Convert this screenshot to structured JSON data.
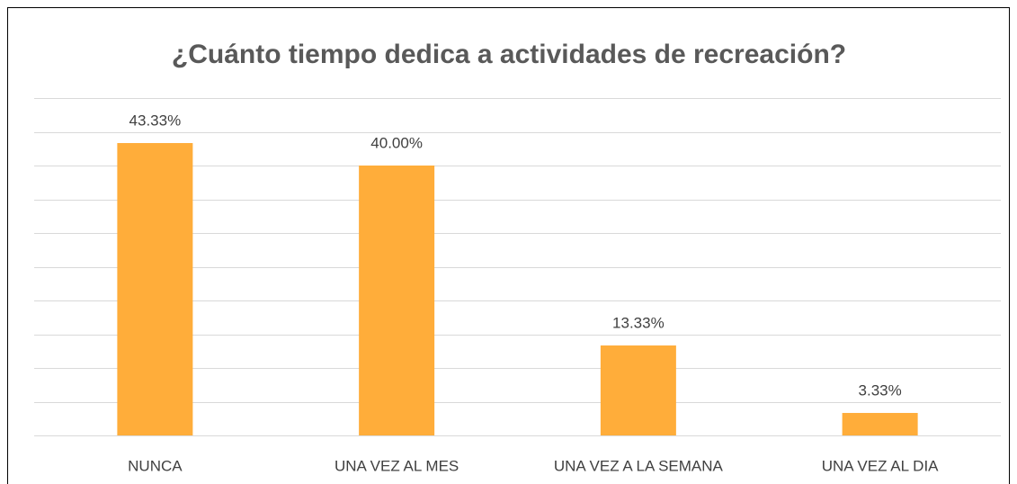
{
  "chart_data": {
    "type": "bar",
    "title": "¿Cuánto tiempo dedica a actividades de recreación?",
    "categories": [
      "NUNCA",
      "UNA VEZ AL MES",
      "UNA VEZ A LA SEMANA",
      "UNA VEZ AL DIA"
    ],
    "values": [
      43.33,
      40.0,
      13.33,
      3.33
    ],
    "value_labels": [
      "43.33%",
      "40.00%",
      "13.33%",
      "3.33%"
    ],
    "color": "#ffad3a",
    "ylim": [
      0,
      50
    ],
    "yticks": [
      0,
      5,
      10,
      15,
      20,
      25,
      30,
      35,
      40,
      45,
      50
    ],
    "grid": true
  }
}
